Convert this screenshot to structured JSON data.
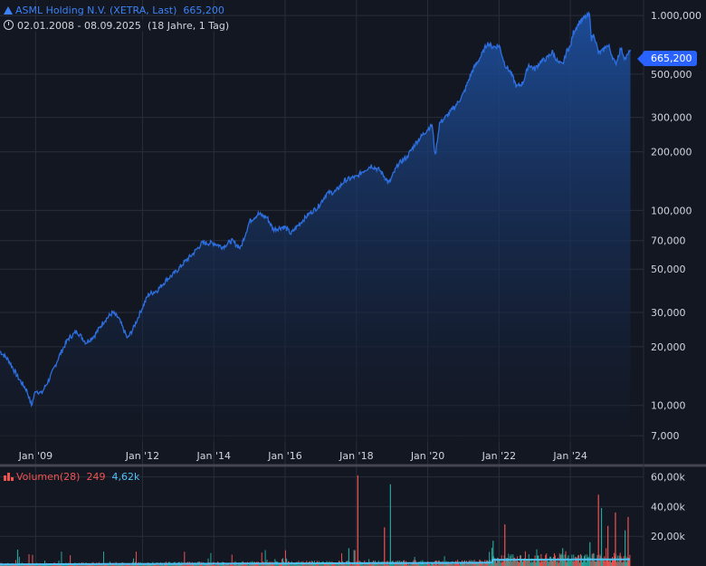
{
  "header": {
    "title": "ASML Holding N.V. (XETRA, Last)",
    "last_value": "665,200",
    "date_range": "02.01.2008 - 08.09.2025",
    "duration": "(18 Jahre, 1 Tag)"
  },
  "price_tag": "665,200",
  "volume_header": {
    "label": "Volumen(28)",
    "value1": "249",
    "value2": "4,62k"
  },
  "colors": {
    "line": "#2d6fe0",
    "area_top": "#1d4e9c",
    "area_bottom": "#131722",
    "grid": "#2a2e39",
    "text": "#d1d4dc",
    "up": "#26a69a",
    "down": "#ef5350",
    "volume_ma": "#4fc3f7"
  },
  "chart_data": [
    {
      "type": "area",
      "title": "ASML Holding N.V. (XETRA, Last)",
      "y_scale": "log",
      "ylim": [
        6.5,
        1150
      ],
      "y_ticks": [
        1000,
        500,
        300,
        200,
        100,
        70,
        50,
        30,
        20,
        10,
        7
      ],
      "y_tick_labels": [
        "1.000,000",
        "500,000",
        "300,000",
        "200,000",
        "100,000",
        "70,000",
        "50,000",
        "30,000",
        "20,000",
        "10,000",
        "7,000"
      ],
      "x_tick_labels": [
        "Jan '09",
        "Jan '12",
        "Jan '14",
        "Jan '16",
        "Jan '18",
        "Jan '20",
        "Jan '22",
        "Jan '24"
      ],
      "x_tick_dates": [
        "2009-01-01",
        "2012-01-01",
        "2014-01-01",
        "2016-01-01",
        "2018-01-01",
        "2020-01-01",
        "2022-01-01",
        "2024-01-01"
      ],
      "xlim": [
        "2008-01-02",
        "2026-01-20"
      ],
      "last_value": 665.2,
      "grid": true,
      "points": [
        [
          "2008-01-02",
          19
        ],
        [
          "2008-04-01",
          17
        ],
        [
          "2008-07-01",
          14
        ],
        [
          "2008-10-01",
          12
        ],
        [
          "2008-11-20",
          10
        ],
        [
          "2009-01-02",
          12
        ],
        [
          "2009-03-01",
          11.5
        ],
        [
          "2009-06-01",
          14
        ],
        [
          "2009-09-01",
          18
        ],
        [
          "2009-12-01",
          22
        ],
        [
          "2010-03-01",
          24
        ],
        [
          "2010-06-01",
          21
        ],
        [
          "2010-09-01",
          23
        ],
        [
          "2010-12-01",
          27
        ],
        [
          "2011-03-01",
          30
        ],
        [
          "2011-05-01",
          28
        ],
        [
          "2011-08-01",
          22
        ],
        [
          "2011-10-01",
          25
        ],
        [
          "2012-01-02",
          32
        ],
        [
          "2012-03-01",
          37
        ],
        [
          "2012-06-01",
          39
        ],
        [
          "2012-09-01",
          44
        ],
        [
          "2012-12-01",
          48
        ],
        [
          "2013-03-01",
          54
        ],
        [
          "2013-06-01",
          60
        ],
        [
          "2013-09-01",
          68
        ],
        [
          "2014-01-02",
          68
        ],
        [
          "2014-04-01",
          65
        ],
        [
          "2014-07-01",
          70
        ],
        [
          "2014-10-01",
          64
        ],
        [
          "2015-01-02",
          88
        ],
        [
          "2015-04-01",
          96
        ],
        [
          "2015-07-01",
          92
        ],
        [
          "2015-09-01",
          80
        ],
        [
          "2015-12-01",
          82
        ],
        [
          "2016-01-02",
          82
        ],
        [
          "2016-03-01",
          76
        ],
        [
          "2016-06-01",
          86
        ],
        [
          "2016-09-01",
          96
        ],
        [
          "2016-12-01",
          104
        ],
        [
          "2017-03-01",
          122
        ],
        [
          "2017-06-01",
          125
        ],
        [
          "2017-09-01",
          142
        ],
        [
          "2017-12-01",
          148
        ],
        [
          "2018-01-02",
          148
        ],
        [
          "2018-03-01",
          158
        ],
        [
          "2018-06-01",
          170
        ],
        [
          "2018-09-01",
          160
        ],
        [
          "2018-12-01",
          138
        ],
        [
          "2019-03-01",
          172
        ],
        [
          "2019-06-01",
          188
        ],
        [
          "2019-09-01",
          222
        ],
        [
          "2020-01-02",
          262
        ],
        [
          "2020-02-15",
          275
        ],
        [
          "2020-03-18",
          190
        ],
        [
          "2020-05-01",
          280
        ],
        [
          "2020-08-01",
          312
        ],
        [
          "2020-11-01",
          355
        ],
        [
          "2021-01-04",
          400
        ],
        [
          "2021-04-01",
          520
        ],
        [
          "2021-07-01",
          620
        ],
        [
          "2021-09-01",
          720
        ],
        [
          "2021-11-01",
          690
        ],
        [
          "2022-01-03",
          700
        ],
        [
          "2022-03-01",
          560
        ],
        [
          "2022-05-01",
          510
        ],
        [
          "2022-07-01",
          430
        ],
        [
          "2022-09-01",
          450
        ],
        [
          "2022-11-01",
          560
        ],
        [
          "2023-01-02",
          530
        ],
        [
          "2023-03-01",
          580
        ],
        [
          "2023-05-01",
          600
        ],
        [
          "2023-07-01",
          650
        ],
        [
          "2023-09-01",
          570
        ],
        [
          "2023-10-15",
          560
        ],
        [
          "2023-12-01",
          670
        ],
        [
          "2024-01-02",
          690
        ],
        [
          "2024-02-01",
          820
        ],
        [
          "2024-04-01",
          920
        ],
        [
          "2024-06-01",
          980
        ],
        [
          "2024-07-15",
          1010
        ],
        [
          "2024-08-05",
          760
        ],
        [
          "2024-09-01",
          800
        ],
        [
          "2024-10-15",
          640
        ],
        [
          "2024-12-01",
          660
        ],
        [
          "2025-01-02",
          700
        ],
        [
          "2025-02-01",
          690
        ],
        [
          "2025-04-07",
          560
        ],
        [
          "2025-06-01",
          680
        ],
        [
          "2025-07-15",
          600
        ],
        [
          "2025-08-15",
          630
        ],
        [
          "2025-09-08",
          665.2
        ]
      ]
    },
    {
      "type": "bar",
      "title": "Volumen(28)",
      "y_ticks": [
        20000,
        40000,
        60000
      ],
      "y_tick_labels": [
        "20,00k",
        "40,00k",
        "60,00k"
      ],
      "ylim": [
        0,
        64000
      ],
      "ma_period": 28,
      "ma_last": 4620,
      "last_volume": 249,
      "notable_spikes": [
        {
          "date": "2008-07-01",
          "value": 11000
        },
        {
          "date": "2016-01-15",
          "value": 5000
        },
        {
          "date": "2017-10-15",
          "value": 12000
        },
        {
          "date": "2018-01-15",
          "value": 61000
        },
        {
          "date": "2018-10-15",
          "value": 26000
        },
        {
          "date": "2018-12-15",
          "value": 55000
        },
        {
          "date": "2021-11-01",
          "value": 17000
        },
        {
          "date": "2022-03-01",
          "value": 28000
        },
        {
          "date": "2023-10-15",
          "value": 12000
        },
        {
          "date": "2024-07-20",
          "value": 16000
        },
        {
          "date": "2024-10-15",
          "value": 48000
        },
        {
          "date": "2024-11-15",
          "value": 39000
        },
        {
          "date": "2025-01-20",
          "value": 27000
        },
        {
          "date": "2025-04-07",
          "value": 36000
        },
        {
          "date": "2025-07-15",
          "value": 24000
        },
        {
          "date": "2025-08-15",
          "value": 33000
        }
      ]
    }
  ]
}
